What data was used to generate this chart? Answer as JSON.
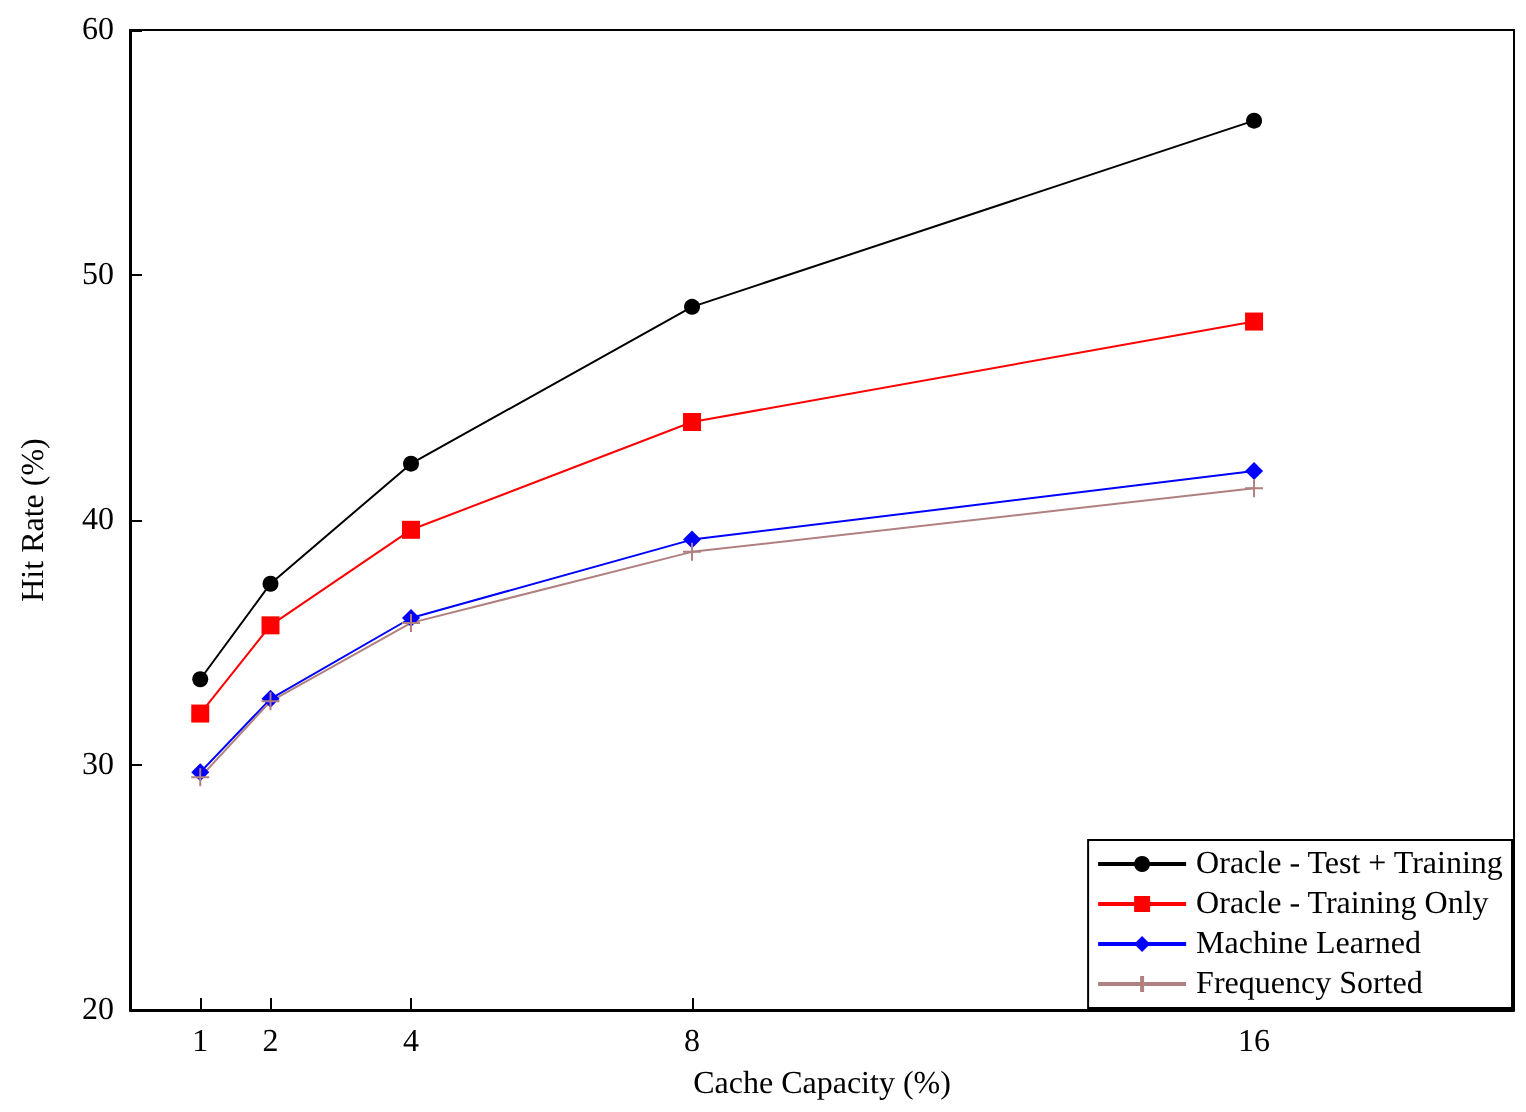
{
  "chart_data": {
    "type": "line",
    "xlabel": "Cache Capacity (%)",
    "ylabel": "Hit Rate (%)",
    "x": [
      1,
      2,
      4,
      8,
      16
    ],
    "xlim": [
      0,
      19.7
    ],
    "xticks": [
      1,
      2,
      4,
      8,
      16
    ],
    "ylim": [
      20,
      60
    ],
    "yticks": [
      20,
      30,
      40,
      50,
      60
    ],
    "grid": false,
    "legend": "bottom right",
    "line_style": "solid",
    "series": [
      {
        "name": "Oracle - Test + Training",
        "color": "#000000",
        "marker": "circle",
        "values": [
          33.5,
          37.4,
          42.3,
          48.7,
          56.3
        ]
      },
      {
        "name": "Oracle - Training Only",
        "color": "#ff0000",
        "marker": "square",
        "values": [
          32.1,
          35.7,
          39.6,
          44.0,
          48.1
        ]
      },
      {
        "name": "Machine Learned",
        "color": "#0000ff",
        "marker": "diamond",
        "values": [
          29.7,
          32.7,
          36.0,
          39.2,
          42.0
        ]
      },
      {
        "name": "Frequency Sorted",
        "color": "#b08080",
        "marker": "cross",
        "values": [
          29.5,
          32.6,
          35.8,
          38.7,
          41.3
        ]
      }
    ]
  }
}
